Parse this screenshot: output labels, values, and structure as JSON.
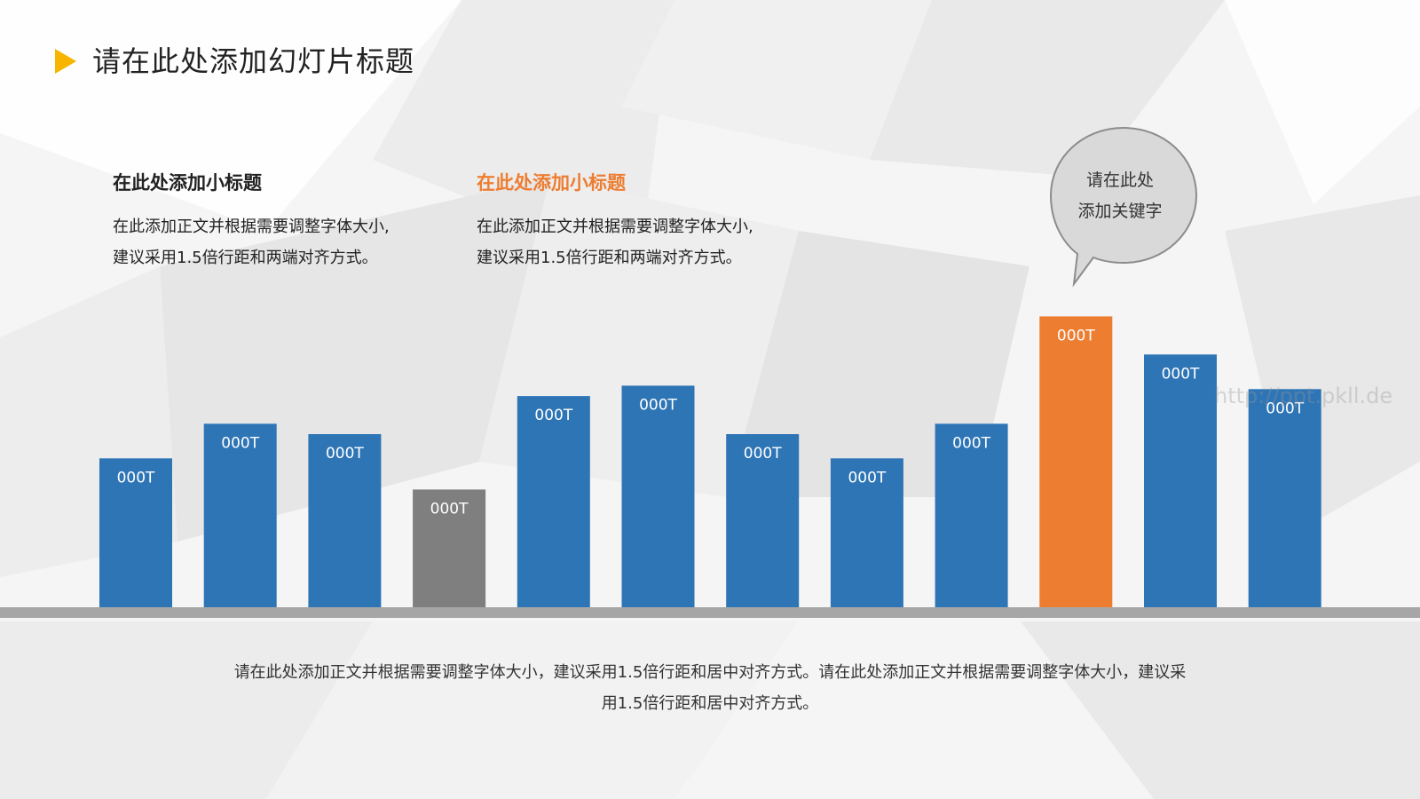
{
  "slide": {
    "title": "请在此处添加幻灯片标题",
    "blocks": [
      {
        "subtitle": "在此处添加小标题",
        "line1": "在此添加正文并根据需要调整字体大小,",
        "line2": "建议采用1.5倍行距和两端对齐方式。"
      },
      {
        "subtitle": "在此处添加小标题",
        "line1": "在此添加正文并根据需要调整字体大小,",
        "line2": "建议采用1.5倍行距和两端对齐方式。"
      }
    ],
    "bubble": {
      "line1": "请在此处",
      "line2": "添加关键字"
    },
    "bottom": {
      "line1": "请在此处添加正文并根据需要调整字体大小，建议采用1.5倍行距和居中对齐方式。请在此处添加正文并根据需要调整字体大小，建议采",
      "line2": "用1.5倍行距和居中对齐方式。"
    },
    "watermark": "http://ppt.pkll.de"
  },
  "colors": {
    "blue": "#2e75b6",
    "gray": "#7f7f7f",
    "orange": "#ed7d31",
    "accent_marker": "#f7b500"
  },
  "chart_data": {
    "type": "bar",
    "categories": [
      "",
      "",
      "",
      "",
      "",
      "",
      "",
      "",
      "",
      "",
      "",
      ""
    ],
    "values": [
      4.3,
      5.3,
      5.0,
      3.4,
      6.1,
      6.4,
      5.0,
      4.3,
      5.3,
      8.4,
      7.3,
      6.3
    ],
    "data_labels": [
      "000T",
      "000T",
      "000T",
      "000T",
      "000T",
      "000T",
      "000T",
      "000T",
      "000T",
      "000T",
      "000T",
      "000T"
    ],
    "bar_colors": [
      "blue",
      "blue",
      "blue",
      "gray",
      "blue",
      "blue",
      "blue",
      "blue",
      "blue",
      "orange",
      "blue",
      "blue"
    ],
    "ylim": [
      0,
      10
    ],
    "grid": false,
    "title": "",
    "xlabel": "",
    "ylabel": ""
  }
}
